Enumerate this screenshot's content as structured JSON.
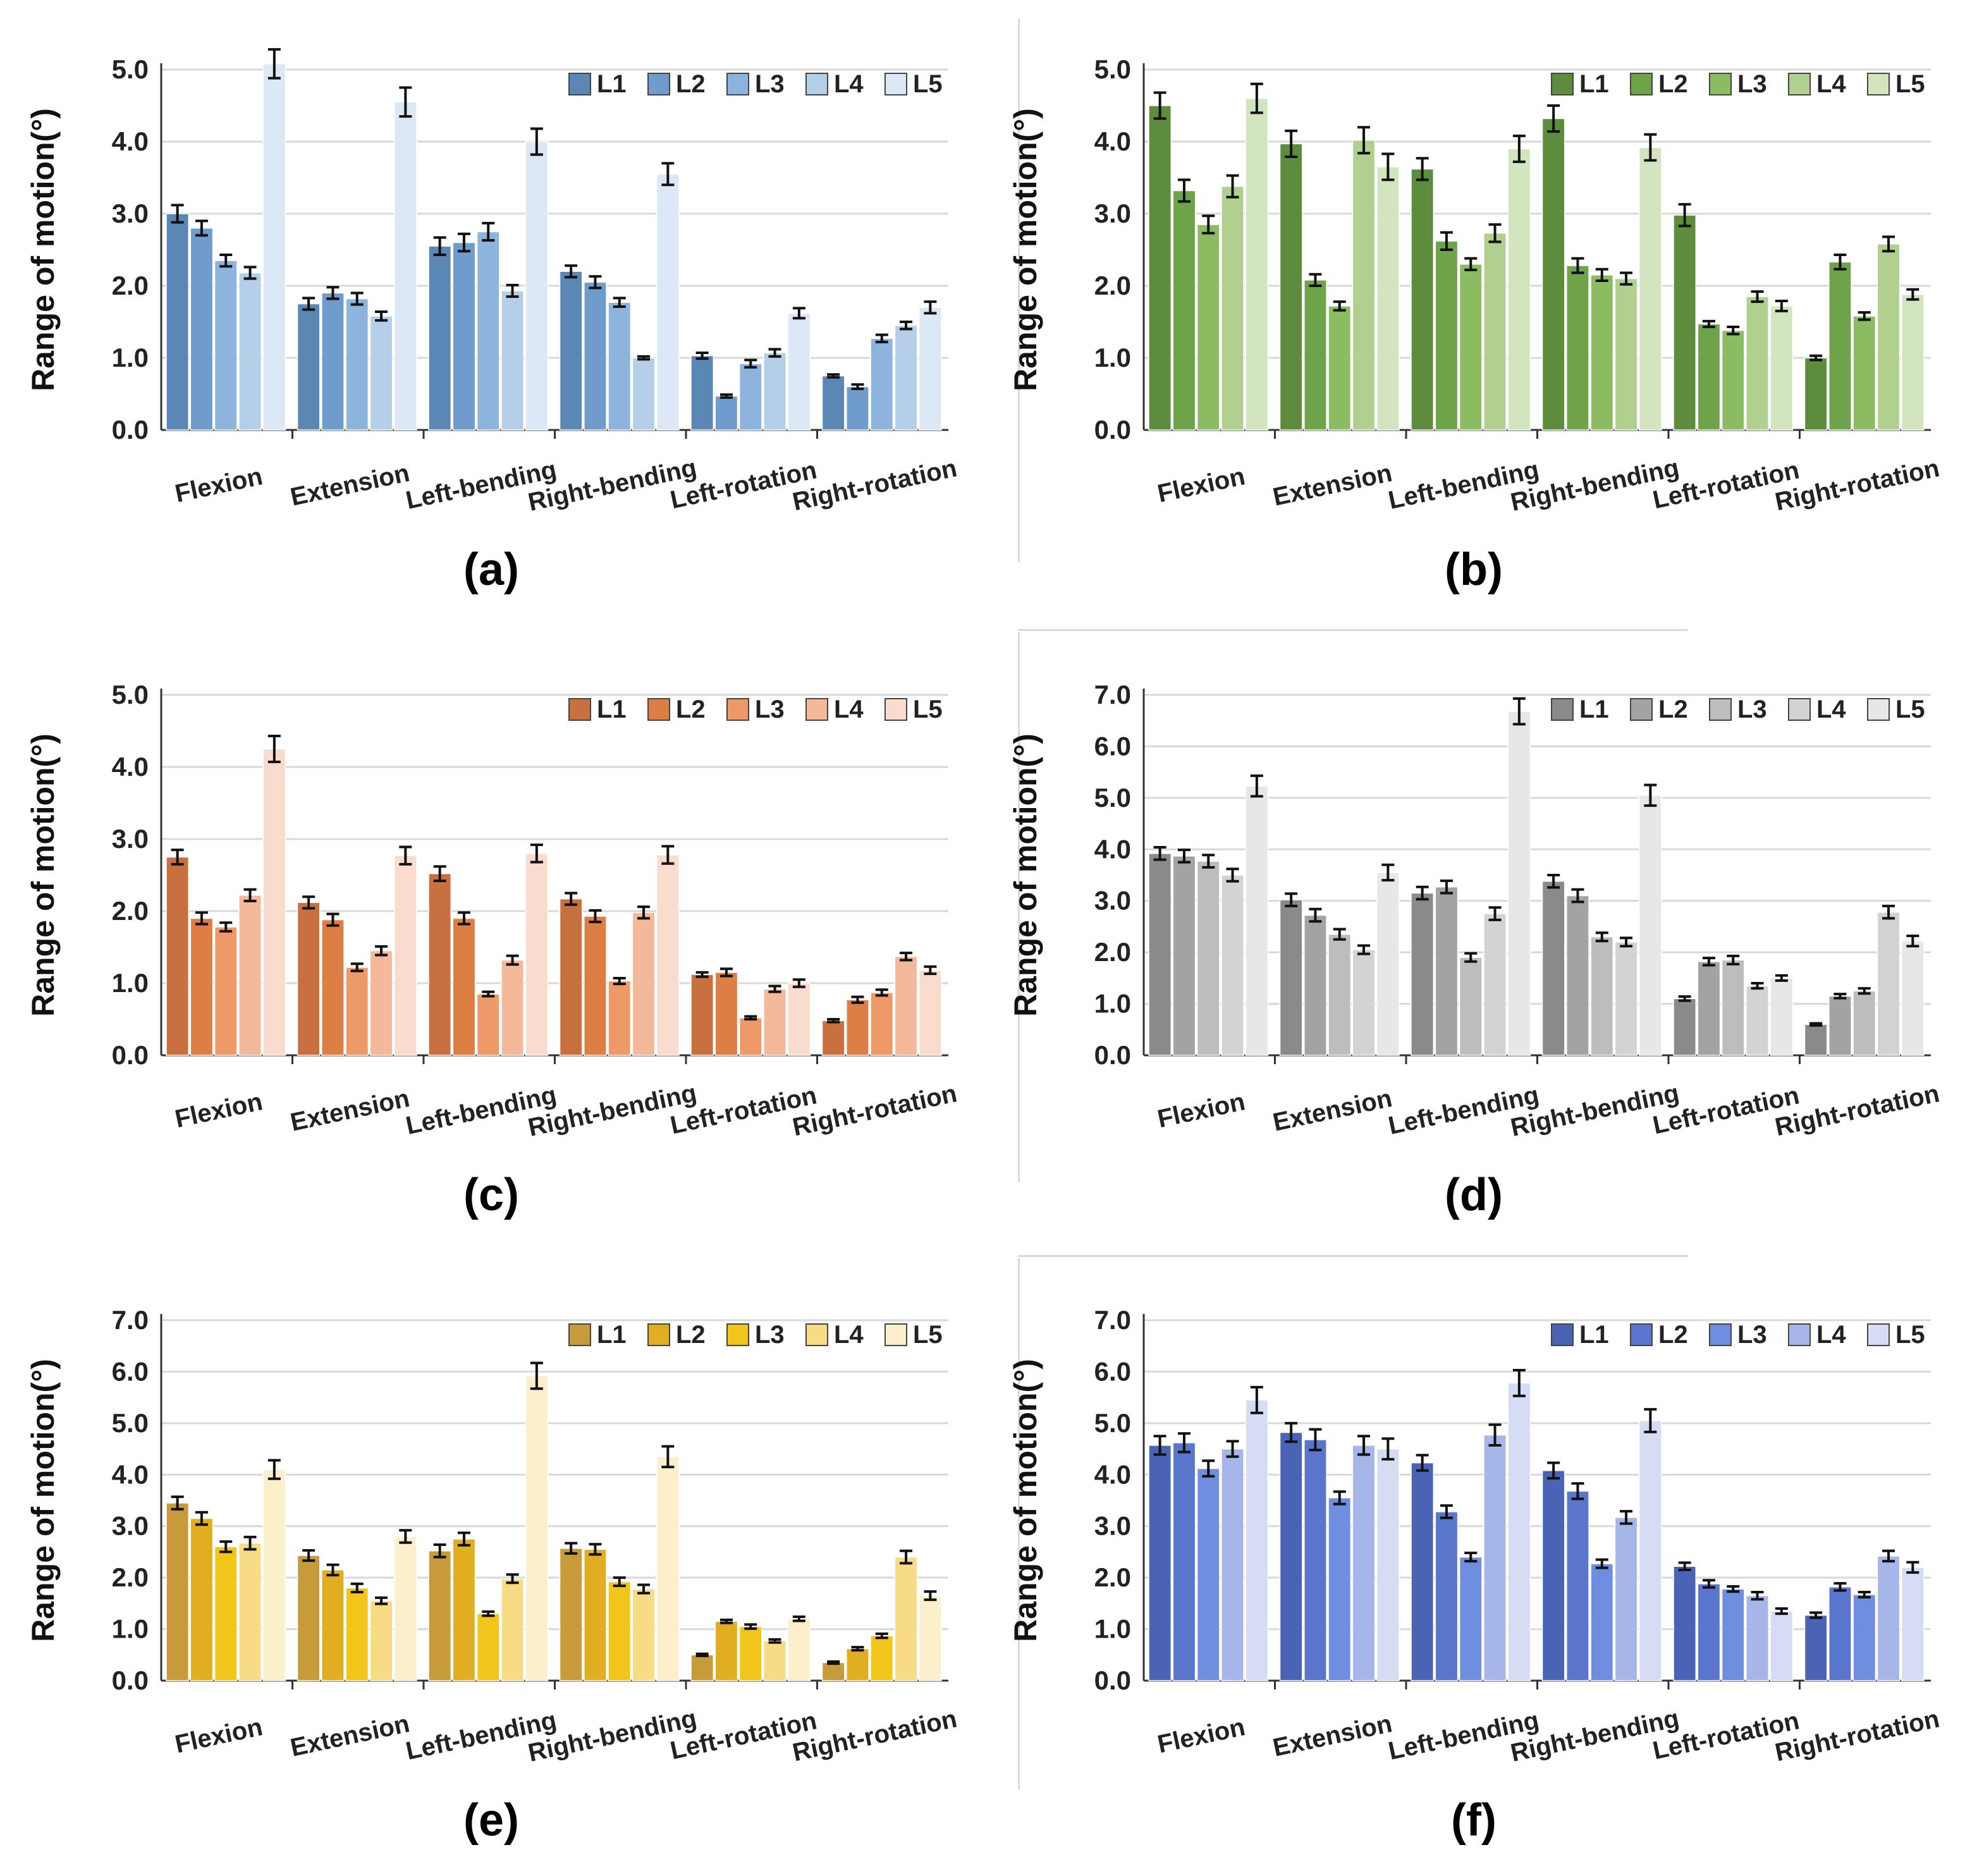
{
  "figure": {
    "categories": [
      "Flexion",
      "Extension",
      "Left-bending",
      "Right-bending",
      "Left-rotation",
      "Right-rotation"
    ],
    "legend": [
      "L1",
      "L2",
      "L3",
      "L4",
      "L5"
    ],
    "ylabel": "Range of motion(°)"
  },
  "chart_data": [
    {
      "id": "a",
      "label": "(a)",
      "type": "bar",
      "title": "",
      "xlabel": "",
      "ylabel": "Range of motion(°)",
      "ylim": [
        0,
        5
      ],
      "ticks": [
        "0.0",
        "1.0",
        "2.0",
        "3.0",
        "4.0",
        "5.0"
      ],
      "categories": [
        "Flexion",
        "Extension",
        "Left-bending",
        "Right-bending",
        "Left-rotation",
        "Right-rotation"
      ],
      "colors": [
        "#5b87b4",
        "#6f9ccc",
        "#8db4dc",
        "#b6cfe9",
        "#dce8f5"
      ],
      "series": [
        {
          "name": "L1",
          "values": [
            3.0,
            1.75,
            2.55,
            2.2,
            1.03,
            0.75
          ],
          "errors": [
            0.12,
            0.08,
            0.12,
            0.08,
            0.04,
            0.02
          ]
        },
        {
          "name": "L2",
          "values": [
            2.8,
            1.9,
            2.6,
            2.05,
            0.47,
            0.6
          ],
          "errors": [
            0.1,
            0.08,
            0.12,
            0.08,
            0.02,
            0.03
          ]
        },
        {
          "name": "L3",
          "values": [
            2.35,
            1.82,
            2.75,
            1.77,
            0.92,
            1.27
          ],
          "errors": [
            0.08,
            0.08,
            0.12,
            0.06,
            0.05,
            0.05
          ]
        },
        {
          "name": "L4",
          "values": [
            2.18,
            1.58,
            1.93,
            1.0,
            1.07,
            1.45
          ],
          "errors": [
            0.08,
            0.06,
            0.08,
            0.02,
            0.05,
            0.05
          ]
        },
        {
          "name": "L5",
          "values": [
            5.08,
            4.55,
            4.0,
            3.55,
            1.62,
            1.7
          ],
          "errors": [
            0.2,
            0.2,
            0.18,
            0.15,
            0.07,
            0.08
          ]
        }
      ]
    },
    {
      "id": "b",
      "label": "(b)",
      "type": "bar",
      "title": "",
      "xlabel": "",
      "ylabel": "Range of motion(°)",
      "ylim": [
        0,
        5
      ],
      "ticks": [
        "0.0",
        "1.0",
        "2.0",
        "3.0",
        "4.0",
        "5.0"
      ],
      "categories": [
        "Flexion",
        "Extension",
        "Left-bending",
        "Right-bending",
        "Left-rotation",
        "Right-rotation"
      ],
      "colors": [
        "#5c8c3c",
        "#6fa34a",
        "#8cbc62",
        "#b1d08f",
        "#d3e5bf"
      ],
      "series": [
        {
          "name": "L1",
          "values": [
            4.5,
            3.97,
            3.62,
            4.32,
            2.98,
            1.0
          ],
          "errors": [
            0.18,
            0.18,
            0.15,
            0.18,
            0.15,
            0.03
          ]
        },
        {
          "name": "L2",
          "values": [
            3.32,
            2.08,
            2.62,
            2.28,
            1.47,
            2.33
          ],
          "errors": [
            0.15,
            0.08,
            0.12,
            0.1,
            0.04,
            0.1
          ]
        },
        {
          "name": "L3",
          "values": [
            2.85,
            1.72,
            2.3,
            2.15,
            1.38,
            1.58
          ],
          "errors": [
            0.12,
            0.06,
            0.08,
            0.08,
            0.05,
            0.05
          ]
        },
        {
          "name": "L4",
          "values": [
            3.38,
            4.02,
            2.73,
            2.1,
            1.85,
            2.58
          ],
          "errors": [
            0.15,
            0.18,
            0.12,
            0.08,
            0.07,
            0.1
          ]
        },
        {
          "name": "L5",
          "values": [
            4.6,
            3.65,
            3.9,
            3.92,
            1.72,
            1.88
          ],
          "errors": [
            0.2,
            0.18,
            0.18,
            0.18,
            0.07,
            0.07
          ]
        }
      ]
    },
    {
      "id": "c",
      "label": "(c)",
      "type": "bar",
      "title": "",
      "xlabel": "",
      "ylabel": "Range of motion(°)",
      "ylim": [
        0,
        5
      ],
      "ticks": [
        "0.0",
        "1.0",
        "2.0",
        "3.0",
        "4.0",
        "5.0"
      ],
      "categories": [
        "Flexion",
        "Extension",
        "Left-bending",
        "Right-bending",
        "Left-rotation",
        "Right-rotation"
      ],
      "colors": [
        "#c8703f",
        "#dd7e45",
        "#ee9a68",
        "#f4b89a",
        "#f9dccd"
      ],
      "series": [
        {
          "name": "L1",
          "values": [
            2.75,
            2.12,
            2.52,
            2.17,
            1.12,
            0.48
          ],
          "errors": [
            0.1,
            0.08,
            0.1,
            0.08,
            0.03,
            0.02
          ]
        },
        {
          "name": "L2",
          "values": [
            1.9,
            1.88,
            1.9,
            1.93,
            1.15,
            0.77
          ],
          "errors": [
            0.08,
            0.08,
            0.08,
            0.08,
            0.05,
            0.04
          ]
        },
        {
          "name": "L3",
          "values": [
            1.78,
            1.22,
            0.85,
            1.03,
            0.52,
            0.87
          ],
          "errors": [
            0.06,
            0.05,
            0.03,
            0.04,
            0.02,
            0.04
          ]
        },
        {
          "name": "L4",
          "values": [
            2.22,
            1.45,
            1.32,
            1.98,
            0.92,
            1.37
          ],
          "errors": [
            0.08,
            0.06,
            0.06,
            0.08,
            0.04,
            0.05
          ]
        },
        {
          "name": "L5",
          "values": [
            4.25,
            2.77,
            2.8,
            2.78,
            1.0,
            1.18
          ],
          "errors": [
            0.18,
            0.12,
            0.12,
            0.12,
            0.05,
            0.05
          ]
        }
      ]
    },
    {
      "id": "d",
      "label": "(d)",
      "type": "bar",
      "title": "",
      "xlabel": "",
      "ylabel": "Range of motion(°)",
      "ylim": [
        0,
        7
      ],
      "ticks": [
        "0.0",
        "1.0",
        "2.0",
        "3.0",
        "4.0",
        "5.0",
        "6.0",
        "7.0"
      ],
      "categories": [
        "Flexion",
        "Extension",
        "Left-bending",
        "Right-bending",
        "Left-rotation",
        "Right-rotation"
      ],
      "colors": [
        "#8a8a8a",
        "#a3a3a3",
        "#bdbdbd",
        "#d3d3d3",
        "#e7e7e7"
      ],
      "series": [
        {
          "name": "L1",
          "values": [
            3.92,
            3.02,
            3.15,
            3.38,
            1.1,
            0.6
          ],
          "errors": [
            0.12,
            0.12,
            0.12,
            0.12,
            0.04,
            0.02
          ]
        },
        {
          "name": "L2",
          "values": [
            3.87,
            2.72,
            3.27,
            3.1,
            1.82,
            1.15
          ],
          "errors": [
            0.12,
            0.12,
            0.12,
            0.12,
            0.07,
            0.04
          ]
        },
        {
          "name": "L3",
          "values": [
            3.77,
            2.35,
            1.9,
            2.3,
            1.85,
            1.25
          ],
          "errors": [
            0.12,
            0.1,
            0.08,
            0.08,
            0.08,
            0.05
          ]
        },
        {
          "name": "L4",
          "values": [
            3.5,
            2.05,
            2.75,
            2.2,
            1.35,
            2.78
          ],
          "errors": [
            0.12,
            0.08,
            0.12,
            0.08,
            0.05,
            0.12
          ]
        },
        {
          "name": "L5",
          "values": [
            5.23,
            3.55,
            6.68,
            5.05,
            1.5,
            2.22
          ],
          "errors": [
            0.2,
            0.15,
            0.25,
            0.2,
            0.05,
            0.1
          ]
        }
      ]
    },
    {
      "id": "e",
      "label": "(e)",
      "type": "bar",
      "title": "",
      "xlabel": "",
      "ylabel": "Range of motion(°)",
      "ylim": [
        0,
        7
      ],
      "ticks": [
        "0.0",
        "1.0",
        "2.0",
        "3.0",
        "4.0",
        "5.0",
        "6.0",
        "7.0"
      ],
      "categories": [
        "Flexion",
        "Extension",
        "Left-bending",
        "Right-bending",
        "Left-rotation",
        "Right-rotation"
      ],
      "colors": [
        "#c79b3a",
        "#e0ae20",
        "#f2c51a",
        "#f7db85",
        "#fbefcc"
      ],
      "series": [
        {
          "name": "L1",
          "values": [
            3.45,
            2.43,
            2.52,
            2.57,
            0.5,
            0.35
          ],
          "errors": [
            0.12,
            0.1,
            0.12,
            0.1,
            0.02,
            0.02
          ]
        },
        {
          "name": "L2",
          "values": [
            3.15,
            2.15,
            2.75,
            2.55,
            1.15,
            0.62
          ],
          "errors": [
            0.12,
            0.1,
            0.12,
            0.1,
            0.03,
            0.03
          ]
        },
        {
          "name": "L3",
          "values": [
            2.6,
            1.8,
            1.3,
            1.92,
            1.05,
            0.87
          ],
          "errors": [
            0.1,
            0.08,
            0.04,
            0.08,
            0.04,
            0.04
          ]
        },
        {
          "name": "L4",
          "values": [
            2.67,
            1.55,
            1.98,
            1.78,
            0.77,
            2.4
          ],
          "errors": [
            0.12,
            0.06,
            0.08,
            0.08,
            0.03,
            0.12
          ]
        },
        {
          "name": "L5",
          "values": [
            4.1,
            2.8,
            5.92,
            4.35,
            1.2,
            1.65
          ],
          "errors": [
            0.18,
            0.12,
            0.25,
            0.2,
            0.04,
            0.08
          ]
        }
      ]
    },
    {
      "id": "f",
      "label": "(f)",
      "type": "bar",
      "title": "",
      "xlabel": "",
      "ylabel": "Range of motion(°)",
      "ylim": [
        0,
        7
      ],
      "ticks": [
        "0.0",
        "1.0",
        "2.0",
        "3.0",
        "4.0",
        "5.0",
        "6.0",
        "7.0"
      ],
      "categories": [
        "Flexion",
        "Extension",
        "Left-bending",
        "Right-bending",
        "Left-rotation",
        "Right-rotation"
      ],
      "colors": [
        "#4a63b5",
        "#5a76cc",
        "#6f8ee0",
        "#a7b6e8",
        "#d5dcf3"
      ],
      "series": [
        {
          "name": "L1",
          "values": [
            4.57,
            4.82,
            4.23,
            4.08,
            2.22,
            1.27
          ],
          "errors": [
            0.18,
            0.18,
            0.15,
            0.15,
            0.07,
            0.05
          ]
        },
        {
          "name": "L2",
          "values": [
            4.62,
            4.68,
            3.28,
            3.68,
            1.88,
            1.82
          ],
          "errors": [
            0.18,
            0.2,
            0.12,
            0.15,
            0.07,
            0.07
          ]
        },
        {
          "name": "L3",
          "values": [
            4.12,
            3.55,
            2.4,
            2.27,
            1.78,
            1.67
          ],
          "errors": [
            0.15,
            0.12,
            0.08,
            0.08,
            0.05,
            0.05
          ]
        },
        {
          "name": "L4",
          "values": [
            4.5,
            4.57,
            4.77,
            3.17,
            1.65,
            2.42
          ],
          "errors": [
            0.15,
            0.18,
            0.2,
            0.12,
            0.07,
            0.1
          ]
        },
        {
          "name": "L5",
          "values": [
            5.45,
            4.5,
            5.78,
            5.05,
            1.35,
            2.2
          ],
          "errors": [
            0.25,
            0.2,
            0.25,
            0.22,
            0.05,
            0.1
          ]
        }
      ]
    }
  ]
}
